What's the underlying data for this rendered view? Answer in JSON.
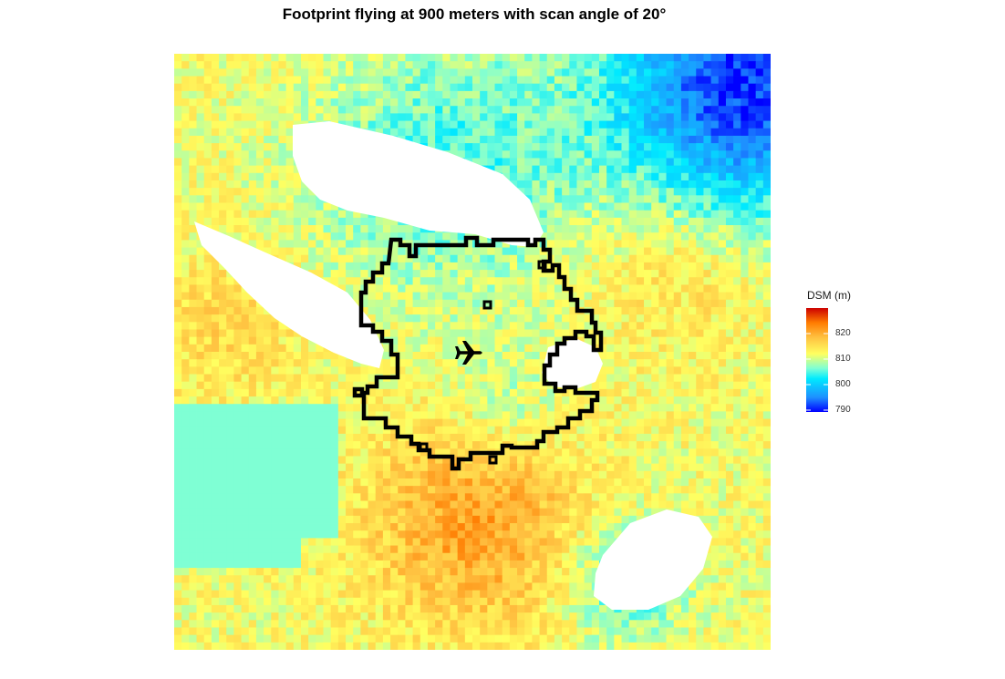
{
  "title": "Footprint flying at 900 meters with scan angle of 20°",
  "legend": {
    "title": "DSM (m)",
    "ticks": [
      "820",
      "810",
      "800",
      "790"
    ],
    "colors": [
      "#0000ff",
      "#1e90ff",
      "#00eaff",
      "#7fffd4",
      "#ffff60",
      "#ffc040",
      "#ff7b00",
      "#cc0000"
    ]
  },
  "map": {
    "icon": "airplane-icon",
    "nodata_color": "#ffffff"
  }
}
